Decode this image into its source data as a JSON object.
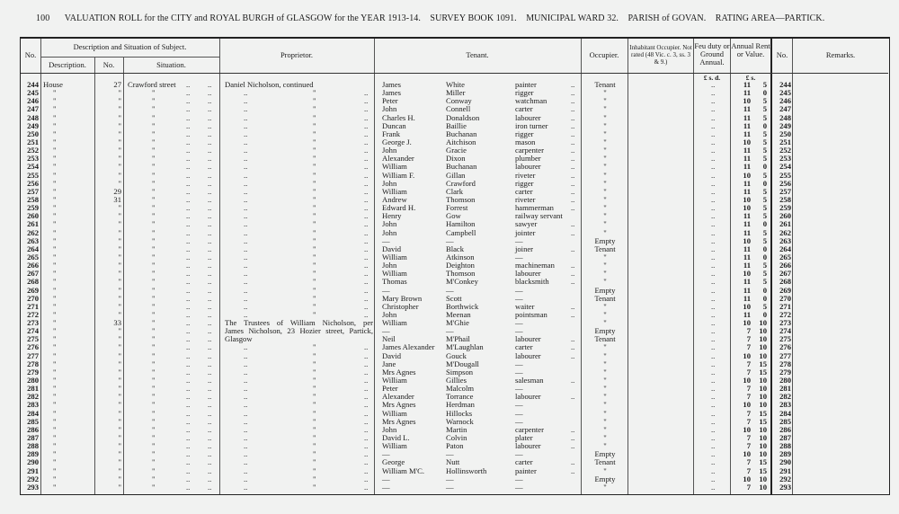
{
  "header": {
    "page_number": "100",
    "title": "VALUATION ROLL for the CITY and ROYAL BURGH of GLASGOW for the YEAR 1913-14.",
    "survey_book": "SURVEY BOOK 1091.",
    "ward": "MUNICIPAL WARD 32.",
    "parish": "PARISH of GOVAN.",
    "rating_area": "RATING AREA—PARTICK."
  },
  "columns": {
    "no": "No.",
    "desc_group": "Description and Situation of Subject.",
    "description": "Description.",
    "house_no": "No.",
    "situation": "Situation.",
    "proprietor": "Proprietor.",
    "tenant": "Tenant.",
    "occupier": "Occupier.",
    "inhabitant": "Inhabitant Occupier. Not rated (48 Vic. c. 3, ss. 3 & 9.)",
    "feu": "Feu duty or Ground Annual.",
    "rent": "Annual Rent or Value.",
    "no2": "No.",
    "remarks": "Remarks.",
    "feu_units": "£ s. d.",
    "rent_units": "£ s."
  },
  "first_row": {
    "description": "House",
    "situation": "Crawford street"
  },
  "ditto": "\"",
  "dots": "..",
  "proprietor_lines": {
    "244": "Daniel Nicholson, continued",
    "273": "The Trustees of William Nicholson, per",
    "274": "James Nicholson, 23 Hozier street, Partick,",
    "275": "Glasgow"
  },
  "rows": [
    [
      "244",
      "27",
      "James",
      "White",
      "painter",
      "Tenant",
      "11",
      "5"
    ],
    [
      "245",
      "",
      "James",
      "Miller",
      "rigger",
      "\"",
      "11",
      "0"
    ],
    [
      "246",
      "",
      "Peter",
      "Conway",
      "watchman",
      "\"",
      "10",
      "5"
    ],
    [
      "247",
      "",
      "John",
      "Connell",
      "carter",
      "\"",
      "11",
      "5"
    ],
    [
      "248",
      "",
      "Charles H.",
      "Donaldson",
      "labourer",
      "\"",
      "11",
      "5"
    ],
    [
      "249",
      "",
      "Duncan",
      "Baillie",
      "iron turner",
      "\"",
      "11",
      "0"
    ],
    [
      "250",
      "",
      "Frank",
      "Buchanan",
      "rigger",
      "\"",
      "11",
      "5"
    ],
    [
      "251",
      "",
      "George J.",
      "Aitchison",
      "mason",
      "\"",
      "10",
      "5"
    ],
    [
      "252",
      "",
      "John",
      "Gracie",
      "carpenter",
      "\"",
      "11",
      "5"
    ],
    [
      "253",
      "",
      "Alexander",
      "Dixon",
      "plumber",
      "\"",
      "11",
      "5"
    ],
    [
      "254",
      "",
      "William",
      "Buchanan",
      "labourer",
      "\"",
      "11",
      "0"
    ],
    [
      "255",
      "",
      "William F.",
      "Gillan",
      "riveter",
      "\"",
      "10",
      "5"
    ],
    [
      "256",
      "",
      "John",
      "Crawford",
      "rigger",
      "\"",
      "11",
      "0"
    ],
    [
      "257",
      "29",
      "William",
      "Clark",
      "carter",
      "\"",
      "11",
      "5"
    ],
    [
      "258",
      "31",
      "Andrew",
      "Thomson",
      "riveter",
      "\"",
      "10",
      "5"
    ],
    [
      "259",
      "",
      "Edward H.",
      "Forrest",
      "hammerman",
      "\"",
      "10",
      "5"
    ],
    [
      "260",
      "",
      "Henry",
      "Gow",
      "railway servant",
      "\"",
      "11",
      "5"
    ],
    [
      "261",
      "",
      "John",
      "Hamilton",
      "sawyer",
      "\"",
      "11",
      "0"
    ],
    [
      "262",
      "",
      "John",
      "Campbell",
      "jointer",
      "\"",
      "11",
      "5"
    ],
    [
      "263",
      "",
      "—",
      "—",
      "—",
      "Empty",
      "10",
      "5"
    ],
    [
      "264",
      "",
      "David",
      "Black",
      "joiner",
      "Tenant",
      "11",
      "0"
    ],
    [
      "265",
      "",
      "William",
      "Atkinson",
      "—",
      "\"",
      "11",
      "0"
    ],
    [
      "266",
      "",
      "John",
      "Deighton",
      "machineman",
      "\"",
      "11",
      "5"
    ],
    [
      "267",
      "",
      "William",
      "Thomson",
      "labourer",
      "\"",
      "10",
      "5"
    ],
    [
      "268",
      "",
      "Thomas",
      "M'Conkey",
      "blacksmith",
      "\"",
      "11",
      "5"
    ],
    [
      "269",
      "",
      "—",
      "—",
      "—",
      "Empty",
      "11",
      "0"
    ],
    [
      "270",
      "",
      "Mary Brown",
      "Scott",
      "—",
      "Tenant",
      "11",
      "0"
    ],
    [
      "271",
      "",
      "Christopher",
      "Borthwick",
      "waiter",
      "\"",
      "10",
      "5"
    ],
    [
      "272",
      "",
      "John",
      "Meenan",
      "pointsman",
      "\"",
      "11",
      "0"
    ],
    [
      "273",
      "33",
      "William",
      "M'Ghie",
      "—",
      "\"",
      "10",
      "10"
    ],
    [
      "274",
      "",
      "—",
      "—",
      "—",
      "Empty",
      "7",
      "10"
    ],
    [
      "275",
      "",
      "Neil",
      "M'Phail",
      "labourer",
      "Tenant",
      "7",
      "10"
    ],
    [
      "276",
      "",
      "James Alexander",
      "M'Laughlan",
      "carter",
      "\"",
      "7",
      "10"
    ],
    [
      "277",
      "",
      "David",
      "Gouck",
      "labourer",
      "\"",
      "10",
      "10"
    ],
    [
      "278",
      "",
      "Jane",
      "M'Dougall",
      "—",
      "\"",
      "7",
      "15"
    ],
    [
      "279",
      "",
      "Mrs Agnes",
      "Simpson",
      "—",
      "\"",
      "7",
      "15"
    ],
    [
      "280",
      "",
      "William",
      "Gillies",
      "salesman",
      "\"",
      "10",
      "10"
    ],
    [
      "281",
      "",
      "Peter",
      "Malcolm",
      "—",
      "\"",
      "7",
      "10"
    ],
    [
      "282",
      "",
      "Alexander",
      "Torrance",
      "labourer",
      "\"",
      "7",
      "10"
    ],
    [
      "283",
      "",
      "Mrs Agnes",
      "Herdman",
      "—",
      "\"",
      "10",
      "10"
    ],
    [
      "284",
      "",
      "William",
      "Hillocks",
      "—",
      "\"",
      "7",
      "15"
    ],
    [
      "285",
      "",
      "Mrs Agnes",
      "Warnock",
      "—",
      "\"",
      "7",
      "15"
    ],
    [
      "286",
      "",
      "John",
      "Martin",
      "carpenter",
      "\"",
      "10",
      "10"
    ],
    [
      "287",
      "",
      "David L.",
      "Colvin",
      "plater",
      "\"",
      "7",
      "10"
    ],
    [
      "288",
      "",
      "William",
      "Paton",
      "labourer",
      "\"",
      "7",
      "10"
    ],
    [
      "289",
      "",
      "—",
      "—",
      "—",
      "Empty",
      "10",
      "10"
    ],
    [
      "290",
      "",
      "George",
      "Nutt",
      "carter",
      "Tenant",
      "7",
      "15"
    ],
    [
      "291",
      "",
      "William M'C.",
      "Hollinsworth",
      "painter",
      "\"",
      "7",
      "15"
    ],
    [
      "292",
      "",
      "—",
      "—",
      "—",
      "Empty",
      "10",
      "10"
    ],
    [
      "293",
      "",
      "—",
      "—",
      "—",
      "\"",
      "7",
      "10"
    ]
  ]
}
